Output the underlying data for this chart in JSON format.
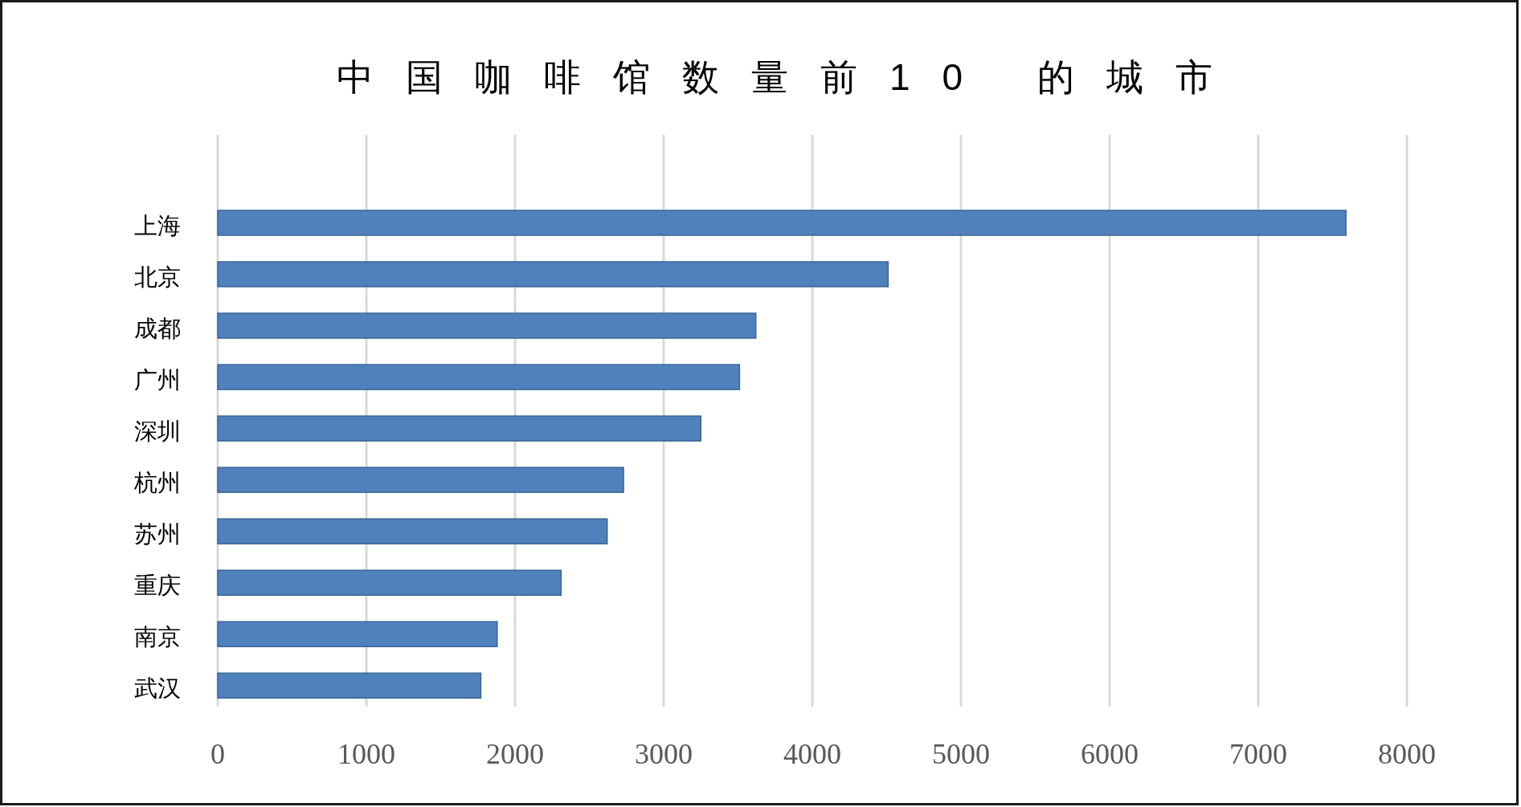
{
  "chart_data": {
    "type": "bar",
    "orientation": "horizontal",
    "title": "中国咖啡馆数量前10 的城市",
    "categories": [
      "上海",
      "北京",
      "成都",
      "广州",
      "深圳",
      "杭州",
      "苏州",
      "重庆",
      "南京",
      "武汉"
    ],
    "values": [
      7590,
      4510,
      3620,
      3510,
      3250,
      2730,
      2620,
      2310,
      1880,
      1770
    ],
    "color": "#4f81bd",
    "xlim": [
      0,
      8000
    ],
    "xticks": [
      0,
      1000,
      2000,
      3000,
      4000,
      5000,
      6000,
      7000,
      8000
    ],
    "grid": "x"
  }
}
